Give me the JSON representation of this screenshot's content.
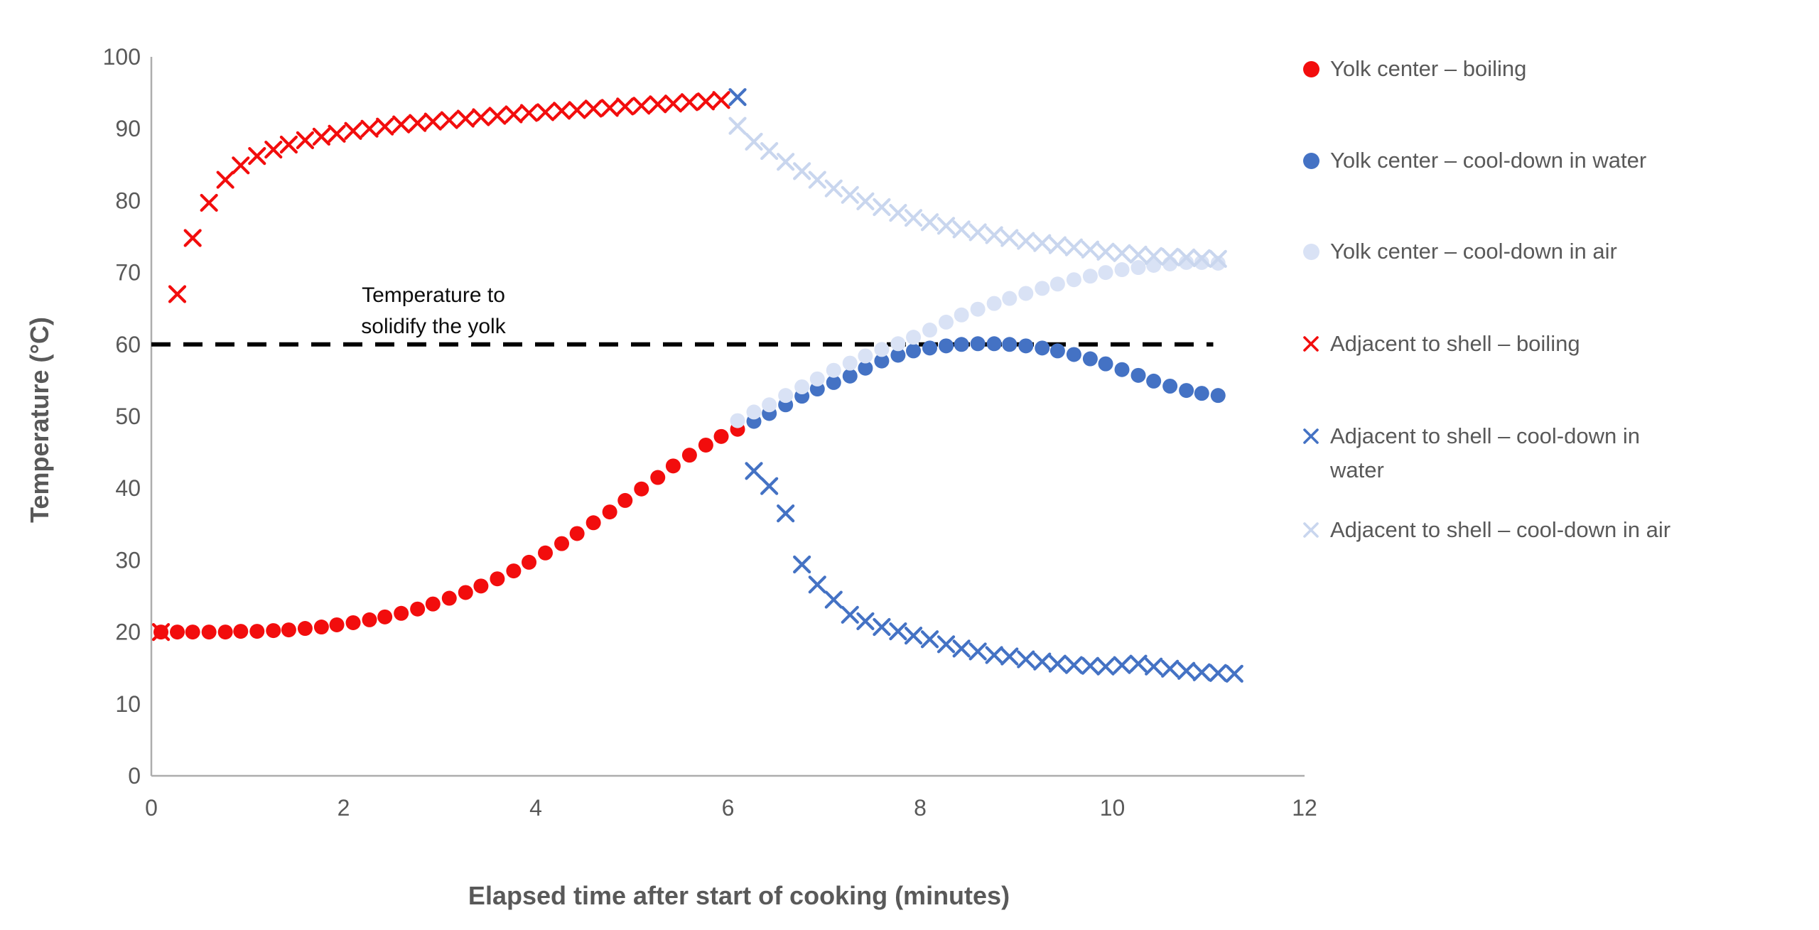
{
  "page": {
    "background": "#ffffff"
  },
  "colors": {
    "red": "#f20d0d",
    "dark_blue": "#4472c4",
    "light_blue_fill": "#d9e2f5",
    "light_blue_cross": "#c9d6ee",
    "axis_line": "#adadad",
    "text_gray": "#595959",
    "reference_line": "#000000"
  },
  "chart_data": {
    "type": "scatter",
    "title": "",
    "xlabel": "Elapsed time after start of cooking (minutes)",
    "ylabel": "Temperature (°C)",
    "xlim": [
      0,
      12
    ],
    "ylim": [
      0,
      100
    ],
    "x_ticks": [
      0,
      2,
      4,
      6,
      8,
      10,
      12
    ],
    "y_ticks": [
      0,
      10,
      20,
      30,
      40,
      50,
      60,
      70,
      80,
      90,
      100
    ],
    "grid": false,
    "legend_position": "right",
    "annotation": {
      "lines": [
        "Temperature to",
        "solidify the yolk"
      ],
      "x": 2.95,
      "y": 64.5
    },
    "reference_line": {
      "y": 60,
      "x_start": 0,
      "x_end": 11.05,
      "style": "dashed",
      "color": "#000000"
    },
    "series": [
      {
        "name": "Yolk center – boiling",
        "marker": "circle",
        "color": "#f20d0d",
        "points": [
          [
            0.1,
            20.0
          ],
          [
            0.27,
            20.0
          ],
          [
            0.43,
            20.0
          ],
          [
            0.6,
            20.0
          ],
          [
            0.77,
            20.0
          ],
          [
            0.93,
            20.1
          ],
          [
            1.1,
            20.1
          ],
          [
            1.27,
            20.2
          ],
          [
            1.43,
            20.3
          ],
          [
            1.6,
            20.5
          ],
          [
            1.77,
            20.7
          ],
          [
            1.93,
            21.0
          ],
          [
            2.1,
            21.3
          ],
          [
            2.27,
            21.7
          ],
          [
            2.43,
            22.1
          ],
          [
            2.6,
            22.6
          ],
          [
            2.77,
            23.2
          ],
          [
            2.93,
            23.9
          ],
          [
            3.1,
            24.7
          ],
          [
            3.27,
            25.5
          ],
          [
            3.43,
            26.4
          ],
          [
            3.6,
            27.4
          ],
          [
            3.77,
            28.5
          ],
          [
            3.93,
            29.7
          ],
          [
            4.1,
            31.0
          ],
          [
            4.27,
            32.3
          ],
          [
            4.43,
            33.7
          ],
          [
            4.6,
            35.2
          ],
          [
            4.77,
            36.7
          ],
          [
            4.93,
            38.3
          ],
          [
            5.1,
            39.9
          ],
          [
            5.27,
            41.5
          ],
          [
            5.43,
            43.1
          ],
          [
            5.6,
            44.6
          ],
          [
            5.77,
            46.0
          ],
          [
            5.93,
            47.2
          ],
          [
            6.1,
            48.2
          ]
        ]
      },
      {
        "name": "Yolk center – cool-down in water",
        "marker": "circle",
        "color": "#4472c4",
        "points": [
          [
            6.27,
            49.3
          ],
          [
            6.43,
            50.4
          ],
          [
            6.6,
            51.6
          ],
          [
            6.77,
            52.8
          ],
          [
            6.93,
            53.8
          ],
          [
            7.1,
            54.7
          ],
          [
            7.27,
            55.6
          ],
          [
            7.43,
            56.7
          ],
          [
            7.6,
            57.7
          ],
          [
            7.77,
            58.5
          ],
          [
            7.93,
            59.1
          ],
          [
            8.1,
            59.5
          ],
          [
            8.27,
            59.8
          ],
          [
            8.43,
            60.0
          ],
          [
            8.6,
            60.1
          ],
          [
            8.77,
            60.1
          ],
          [
            8.93,
            60.0
          ],
          [
            9.1,
            59.8
          ],
          [
            9.27,
            59.5
          ],
          [
            9.43,
            59.1
          ],
          [
            9.6,
            58.6
          ],
          [
            9.77,
            58.0
          ],
          [
            9.93,
            57.3
          ],
          [
            10.1,
            56.5
          ],
          [
            10.27,
            55.7
          ],
          [
            10.43,
            54.9
          ],
          [
            10.6,
            54.2
          ],
          [
            10.77,
            53.6
          ],
          [
            10.93,
            53.2
          ],
          [
            11.1,
            52.9
          ]
        ]
      },
      {
        "name": "Yolk center – cool-down in air",
        "marker": "circle",
        "color": "#d9e2f5",
        "points": [
          [
            6.1,
            49.4
          ],
          [
            6.27,
            50.6
          ],
          [
            6.43,
            51.6
          ],
          [
            6.6,
            52.9
          ],
          [
            6.77,
            54.1
          ],
          [
            6.93,
            55.2
          ],
          [
            7.1,
            56.4
          ],
          [
            7.27,
            57.4
          ],
          [
            7.43,
            58.4
          ],
          [
            7.6,
            59.3
          ],
          [
            7.77,
            60.1
          ],
          [
            7.93,
            61.0
          ],
          [
            8.1,
            62.0
          ],
          [
            8.27,
            63.1
          ],
          [
            8.43,
            64.1
          ],
          [
            8.6,
            64.9
          ],
          [
            8.77,
            65.7
          ],
          [
            8.93,
            66.4
          ],
          [
            9.1,
            67.1
          ],
          [
            9.27,
            67.8
          ],
          [
            9.43,
            68.4
          ],
          [
            9.6,
            69.0
          ],
          [
            9.77,
            69.5
          ],
          [
            9.93,
            70.0
          ],
          [
            10.1,
            70.4
          ],
          [
            10.27,
            70.7
          ],
          [
            10.43,
            71.0
          ],
          [
            10.6,
            71.2
          ],
          [
            10.77,
            71.4
          ],
          [
            10.93,
            71.4
          ],
          [
            11.1,
            71.3
          ]
        ]
      },
      {
        "name": "Adjacent to shell – boiling",
        "marker": "x",
        "color": "#f20d0d",
        "points": [
          [
            0.1,
            20.0
          ],
          [
            0.27,
            67.0
          ],
          [
            0.43,
            74.8
          ],
          [
            0.6,
            79.7
          ],
          [
            0.77,
            82.9
          ],
          [
            0.93,
            84.9
          ],
          [
            1.1,
            86.2
          ],
          [
            1.27,
            87.1
          ],
          [
            1.43,
            87.8
          ],
          [
            1.6,
            88.4
          ],
          [
            1.77,
            88.9
          ],
          [
            1.93,
            89.3
          ],
          [
            2.1,
            89.7
          ],
          [
            2.27,
            90.0
          ],
          [
            2.43,
            90.3
          ],
          [
            2.6,
            90.6
          ],
          [
            2.77,
            90.8
          ],
          [
            2.93,
            91.0
          ],
          [
            3.1,
            91.2
          ],
          [
            3.27,
            91.4
          ],
          [
            3.43,
            91.6
          ],
          [
            3.6,
            91.8
          ],
          [
            3.77,
            92.0
          ],
          [
            3.93,
            92.2
          ],
          [
            4.1,
            92.3
          ],
          [
            4.27,
            92.5
          ],
          [
            4.43,
            92.6
          ],
          [
            4.6,
            92.8
          ],
          [
            4.77,
            92.9
          ],
          [
            4.93,
            93.1
          ],
          [
            5.1,
            93.2
          ],
          [
            5.27,
            93.4
          ],
          [
            5.43,
            93.5
          ],
          [
            5.6,
            93.7
          ],
          [
            5.77,
            93.8
          ],
          [
            5.93,
            94.0
          ]
        ]
      },
      {
        "name": "Adjacent to shell – cool-down in water",
        "marker": "x",
        "color": "#4472c4",
        "points": [
          [
            6.1,
            94.4
          ],
          [
            6.27,
            42.4
          ],
          [
            6.43,
            40.3
          ],
          [
            6.6,
            36.5
          ],
          [
            6.77,
            29.4
          ],
          [
            6.93,
            26.6
          ],
          [
            7.1,
            24.5
          ],
          [
            7.27,
            22.4
          ],
          [
            7.43,
            21.5
          ],
          [
            7.6,
            20.7
          ],
          [
            7.77,
            20.1
          ],
          [
            7.93,
            19.5
          ],
          [
            8.1,
            19.0
          ],
          [
            8.27,
            18.3
          ],
          [
            8.43,
            17.7
          ],
          [
            8.6,
            17.3
          ],
          [
            8.77,
            16.8
          ],
          [
            8.93,
            16.6
          ],
          [
            9.1,
            16.2
          ],
          [
            9.27,
            15.9
          ],
          [
            9.43,
            15.6
          ],
          [
            9.6,
            15.4
          ],
          [
            9.77,
            15.3
          ],
          [
            9.93,
            15.2
          ],
          [
            10.1,
            15.4
          ],
          [
            10.27,
            15.6
          ],
          [
            10.43,
            15.2
          ],
          [
            10.6,
            14.9
          ],
          [
            10.77,
            14.6
          ],
          [
            10.93,
            14.4
          ],
          [
            11.1,
            14.3
          ],
          [
            11.27,
            14.2
          ]
        ]
      },
      {
        "name": "Adjacent to shell – cool-down in air",
        "marker": "x",
        "color": "#c9d6ee",
        "points": [
          [
            6.1,
            90.4
          ],
          [
            6.27,
            88.2
          ],
          [
            6.43,
            86.9
          ],
          [
            6.6,
            85.4
          ],
          [
            6.77,
            84.1
          ],
          [
            6.93,
            82.9
          ],
          [
            7.1,
            81.7
          ],
          [
            7.27,
            80.8
          ],
          [
            7.43,
            79.9
          ],
          [
            7.6,
            79.1
          ],
          [
            7.77,
            78.3
          ],
          [
            7.93,
            77.6
          ],
          [
            8.1,
            77.0
          ],
          [
            8.27,
            76.5
          ],
          [
            8.43,
            76.0
          ],
          [
            8.6,
            75.6
          ],
          [
            8.77,
            75.2
          ],
          [
            8.93,
            74.8
          ],
          [
            9.1,
            74.4
          ],
          [
            9.27,
            74.1
          ],
          [
            9.43,
            73.8
          ],
          [
            9.6,
            73.5
          ],
          [
            9.77,
            73.2
          ],
          [
            9.93,
            72.9
          ],
          [
            10.1,
            72.7
          ],
          [
            10.27,
            72.5
          ],
          [
            10.43,
            72.3
          ],
          [
            10.6,
            72.2
          ],
          [
            10.77,
            72.1
          ],
          [
            10.93,
            72.0
          ],
          [
            11.1,
            71.9
          ]
        ]
      }
    ]
  },
  "legend": {
    "items": [
      {
        "marker": "circle",
        "color": "#f20d0d",
        "label_lines": [
          "Yolk center – boiling"
        ]
      },
      {
        "marker": "circle",
        "color": "#4472c4",
        "label_lines": [
          "Yolk center – cool-down in water"
        ]
      },
      {
        "marker": "circle",
        "color": "#d9e2f5",
        "label_lines": [
          "Yolk center – cool-down in air"
        ]
      },
      {
        "marker": "x",
        "color": "#f20d0d",
        "label_lines": [
          "Adjacent to shell – boiling"
        ]
      },
      {
        "marker": "x",
        "color": "#4472c4",
        "label_lines": [
          "Adjacent to shell – cool-down in",
          "water"
        ]
      },
      {
        "marker": "x",
        "color": "#c9d6ee",
        "label_lines": [
          "Adjacent to shell – cool-down in air"
        ]
      }
    ]
  }
}
